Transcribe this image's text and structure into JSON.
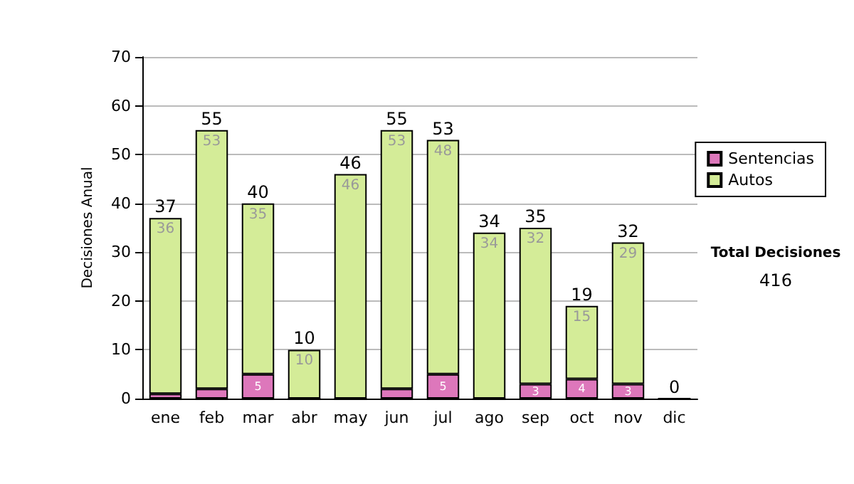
{
  "chart_data": {
    "type": "bar",
    "stacked": true,
    "ylabel": "Decisiones Anual",
    "categories": [
      "ene",
      "feb",
      "mar",
      "abr",
      "may",
      "jun",
      "jul",
      "ago",
      "sep",
      "oct",
      "nov",
      "dic"
    ],
    "series": [
      {
        "name": "Sentencias",
        "color": "#dd77bb",
        "values": [
          1,
          2,
          5,
          0,
          0,
          2,
          5,
          0,
          3,
          4,
          3,
          0
        ],
        "value_labels": [
          null,
          null,
          "5",
          null,
          null,
          null,
          "5",
          null,
          "3",
          "4",
          "3",
          null
        ]
      },
      {
        "name": "Autos",
        "color": "#d4ec98",
        "values": [
          36,
          53,
          35,
          10,
          46,
          53,
          48,
          34,
          32,
          15,
          29,
          0
        ],
        "value_labels": [
          "36",
          "53",
          "35",
          "10",
          "46",
          "53",
          "48",
          "34",
          "32",
          "15",
          "29",
          null
        ]
      }
    ],
    "totals": [
      "37",
      "55",
      "40",
      "10",
      "46",
      "55",
      "53",
      "34",
      "35",
      "19",
      "32",
      "0"
    ],
    "ylim": [
      0,
      70
    ],
    "yticks": [
      0,
      10,
      20,
      30,
      40,
      50,
      60,
      70
    ],
    "grid": "y",
    "legend": "right",
    "annotations": [
      "Total Decisiones",
      "416"
    ]
  }
}
